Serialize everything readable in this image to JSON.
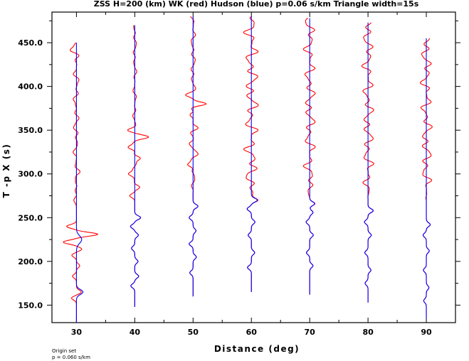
{
  "title": "ZSS H=200 (km) WK (red) Hudson (blue) p=0.06 s/km Triangle width=15s",
  "footnote": {
    "line1": "Origin set",
    "line2": "p = 0.060 s/km"
  },
  "chart_data": {
    "type": "line",
    "title": "ZSS H=200 (km) WK (red) Hudson (blue) p=0.06 s/km Triangle width=15s",
    "xlabel": "Distance (deg)",
    "ylabel": "T -p X (s)",
    "xlim": [
      25.8,
      95.0
    ],
    "ylim": [
      130.0,
      485.0
    ],
    "x_ticks": [
      30,
      40,
      50,
      60,
      70,
      80,
      90
    ],
    "x_tick_labels": [
      "30",
      "40",
      "50",
      "60",
      "70",
      "80",
      "90"
    ],
    "y_ticks": [
      150,
      200,
      250,
      300,
      350,
      400,
      450
    ],
    "y_tick_labels": [
      "150.0",
      "200.0",
      "250.0",
      "300.0",
      "350.0",
      "400.0",
      "450.0"
    ],
    "grid": false,
    "legend": "none",
    "colors": {
      "WK": "#ff0000",
      "Hudson": "#0000ff"
    },
    "traces": [
      {
        "distance": 30,
        "blue": {
          "t_start": 130,
          "t_end": 450,
          "pulses": [
            {
              "t": 165,
              "amp": 2.0,
              "w": 4
            },
            {
              "t": 225,
              "amp": 1.6,
              "w": 6
            }
          ]
        },
        "red": {
          "t_start": 130,
          "t_end": 450,
          "pulses": [
            {
              "t": 158,
              "amp": -1.5,
              "w": 3
            },
            {
              "t": 165,
              "amp": 1.5,
              "w": 3
            },
            {
              "t": 183,
              "amp": -1.2,
              "w": 3
            },
            {
              "t": 195,
              "amp": 1.0,
              "w": 3
            },
            {
              "t": 207,
              "amp": -1.4,
              "w": 3
            },
            {
              "t": 214,
              "amp": 1.6,
              "w": 3
            },
            {
              "t": 222,
              "amp": -4.0,
              "w": 3
            },
            {
              "t": 231,
              "amp": 6.5,
              "w": 3
            },
            {
              "t": 240,
              "amp": -3.0,
              "w": 3
            },
            {
              "t": 270,
              "amp": -0.8,
              "w": 4
            },
            {
              "t": 330,
              "amp": -0.7,
              "w": 4
            },
            {
              "t": 375,
              "amp": -0.6,
              "w": 5
            },
            {
              "t": 441,
              "amp": -1.8,
              "w": 4
            }
          ],
          "wiggle": 0.5
        }
      },
      {
        "distance": 40,
        "blue": {
          "t_start": 148,
          "t_end": 470,
          "pulses": [
            {
              "t": 172,
              "amp": -1.2,
              "w": 3
            },
            {
              "t": 183,
              "amp": 1.2,
              "w": 3
            },
            {
              "t": 200,
              "amp": 1.0,
              "w": 3
            },
            {
              "t": 215,
              "amp": -1.0,
              "w": 3
            },
            {
              "t": 230,
              "amp": 1.1,
              "w": 3
            },
            {
              "t": 240,
              "amp": -1.3,
              "w": 3
            },
            {
              "t": 250,
              "amp": 1.8,
              "w": 3
            }
          ]
        },
        "red": {
          "t_start": 148,
          "t_end": 470,
          "pulses": [
            {
              "t": 172,
              "amp": -1.2,
              "w": 3
            },
            {
              "t": 183,
              "amp": 1.2,
              "w": 3
            },
            {
              "t": 200,
              "amp": 1.0,
              "w": 3
            },
            {
              "t": 215,
              "amp": -1.0,
              "w": 3
            },
            {
              "t": 230,
              "amp": 1.1,
              "w": 3
            },
            {
              "t": 240,
              "amp": -1.3,
              "w": 3
            },
            {
              "t": 250,
              "amp": 1.8,
              "w": 3
            },
            {
              "t": 275,
              "amp": -1.5,
              "w": 3
            },
            {
              "t": 285,
              "amp": 1.2,
              "w": 3
            },
            {
              "t": 300,
              "amp": -2.0,
              "w": 3
            },
            {
              "t": 318,
              "amp": 1.5,
              "w": 3
            },
            {
              "t": 330,
              "amp": -2.0,
              "w": 3
            },
            {
              "t": 342,
              "amp": 4.0,
              "w": 3
            },
            {
              "t": 350,
              "amp": -2.0,
              "w": 3
            }
          ],
          "wiggle": 0.3
        }
      },
      {
        "distance": 50,
        "blue": {
          "t_start": 160,
          "t_end": 480,
          "pulses": [
            {
              "t": 187,
              "amp": -1.0,
              "w": 3
            },
            {
              "t": 205,
              "amp": 1.0,
              "w": 3
            },
            {
              "t": 220,
              "amp": -1.2,
              "w": 3
            },
            {
              "t": 235,
              "amp": 0.9,
              "w": 3
            },
            {
              "t": 250,
              "amp": -1.2,
              "w": 3
            },
            {
              "t": 263,
              "amp": 1.5,
              "w": 3
            }
          ]
        },
        "red": {
          "t_start": 160,
          "t_end": 480,
          "pulses": [
            {
              "t": 187,
              "amp": -1.0,
              "w": 3
            },
            {
              "t": 205,
              "amp": 1.0,
              "w": 3
            },
            {
              "t": 220,
              "amp": -1.2,
              "w": 3
            },
            {
              "t": 235,
              "amp": 0.9,
              "w": 3
            },
            {
              "t": 250,
              "amp": -1.2,
              "w": 3
            },
            {
              "t": 263,
              "amp": 1.5,
              "w": 3
            },
            {
              "t": 310,
              "amp": -1.8,
              "w": 3
            },
            {
              "t": 322,
              "amp": 1.4,
              "w": 3
            },
            {
              "t": 335,
              "amp": -1.5,
              "w": 3
            },
            {
              "t": 352,
              "amp": 1.3,
              "w": 3
            },
            {
              "t": 368,
              "amp": -1.5,
              "w": 3
            },
            {
              "t": 380,
              "amp": 4.2,
              "w": 3
            },
            {
              "t": 390,
              "amp": -2.0,
              "w": 3
            }
          ],
          "wiggle": 0.4
        }
      },
      {
        "distance": 60,
        "blue": {
          "t_start": 165,
          "t_end": 480,
          "pulses": [
            {
              "t": 193,
              "amp": -1.2,
              "w": 3
            },
            {
              "t": 210,
              "amp": 1.0,
              "w": 3
            },
            {
              "t": 230,
              "amp": -1.0,
              "w": 3
            },
            {
              "t": 245,
              "amp": 1.1,
              "w": 3
            },
            {
              "t": 260,
              "amp": -1.3,
              "w": 3
            },
            {
              "t": 270,
              "amp": 1.8,
              "w": 3
            }
          ]
        },
        "red": {
          "t_start": 165,
          "t_end": 480,
          "pulses": [
            {
              "t": 193,
              "amp": -1.2,
              "w": 3
            },
            {
              "t": 210,
              "amp": 1.0,
              "w": 3
            },
            {
              "t": 230,
              "amp": -1.0,
              "w": 3
            },
            {
              "t": 245,
              "amp": 1.1,
              "w": 3
            },
            {
              "t": 260,
              "amp": -1.3,
              "w": 3
            },
            {
              "t": 270,
              "amp": 2.0,
              "w": 3
            }
          ],
          "wiggle": 1.1
        }
      },
      {
        "distance": 70,
        "blue": {
          "t_start": 162,
          "t_end": 478,
          "pulses": [
            {
              "t": 195,
              "amp": 1.0,
              "w": 3
            },
            {
              "t": 210,
              "amp": -1.0,
              "w": 3
            },
            {
              "t": 230,
              "amp": 1.1,
              "w": 3
            },
            {
              "t": 245,
              "amp": -1.1,
              "w": 3
            },
            {
              "t": 256,
              "amp": 1.0,
              "w": 3
            },
            {
              "t": 266,
              "amp": 1.5,
              "w": 3
            }
          ]
        },
        "red": {
          "t_start": 162,
          "t_end": 478,
          "pulses": [
            {
              "t": 195,
              "amp": 1.0,
              "w": 3
            },
            {
              "t": 210,
              "amp": -1.0,
              "w": 3
            },
            {
              "t": 230,
              "amp": 1.1,
              "w": 3
            },
            {
              "t": 245,
              "amp": -1.1,
              "w": 3
            },
            {
              "t": 256,
              "amp": 1.0,
              "w": 3
            },
            {
              "t": 266,
              "amp": 1.6,
              "w": 3
            }
          ],
          "wiggle": 0.9
        }
      },
      {
        "distance": 80,
        "blue": {
          "t_start": 153,
          "t_end": 473,
          "pulses": [
            {
              "t": 175,
              "amp": -0.9,
              "w": 3
            },
            {
              "t": 190,
              "amp": 0.9,
              "w": 3
            },
            {
              "t": 210,
              "amp": -1.0,
              "w": 3
            },
            {
              "t": 230,
              "amp": 1.0,
              "w": 3
            },
            {
              "t": 245,
              "amp": -1.1,
              "w": 3
            },
            {
              "t": 258,
              "amp": 1.6,
              "w": 3
            }
          ]
        },
        "red": {
          "t_start": 153,
          "t_end": 473,
          "pulses": [
            {
              "t": 175,
              "amp": -0.9,
              "w": 3
            },
            {
              "t": 190,
              "amp": 0.9,
              "w": 3
            },
            {
              "t": 210,
              "amp": -1.0,
              "w": 3
            },
            {
              "t": 230,
              "amp": 1.0,
              "w": 3
            },
            {
              "t": 245,
              "amp": -1.1,
              "w": 3
            },
            {
              "t": 258,
              "amp": 1.6,
              "w": 3
            }
          ],
          "wiggle": 0.9
        }
      },
      {
        "distance": 90,
        "blue": {
          "t_start": 135,
          "t_end": 455,
          "pulses": [
            {
              "t": 155,
              "amp": -0.8,
              "w": 3
            },
            {
              "t": 170,
              "amp": 0.8,
              "w": 3
            },
            {
              "t": 190,
              "amp": -0.9,
              "w": 3
            },
            {
              "t": 212,
              "amp": 0.9,
              "w": 3
            },
            {
              "t": 230,
              "amp": -1.0,
              "w": 3
            },
            {
              "t": 242,
              "amp": 1.2,
              "w": 3
            }
          ]
        },
        "red": {
          "t_start": 135,
          "t_end": 455,
          "pulses": [
            {
              "t": 155,
              "amp": -0.8,
              "w": 3
            },
            {
              "t": 170,
              "amp": 0.8,
              "w": 3
            },
            {
              "t": 190,
              "amp": -0.9,
              "w": 3
            },
            {
              "t": 212,
              "amp": 0.9,
              "w": 3
            },
            {
              "t": 230,
              "amp": -1.0,
              "w": 3
            },
            {
              "t": 242,
              "amp": 1.2,
              "w": 3
            }
          ],
          "wiggle": 0.9
        }
      }
    ]
  }
}
